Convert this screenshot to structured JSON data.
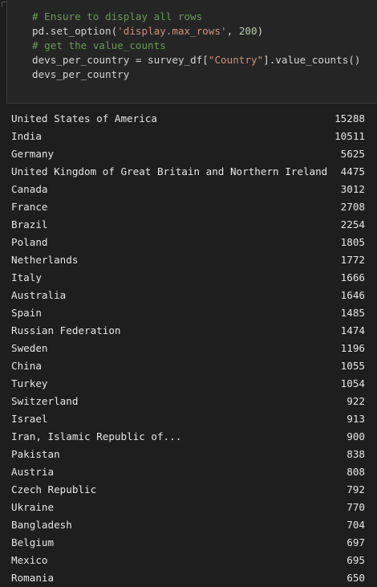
{
  "code_cell": {
    "lines": [
      {
        "kind": "comment",
        "text": "# Ensure to display all rows"
      },
      {
        "kind": "code",
        "tokens": [
          {
            "t": "pd.set_option(",
            "c": "tk-id"
          },
          {
            "t": "'display.max_rows'",
            "c": "tk-str"
          },
          {
            "t": ", ",
            "c": "tk-id"
          },
          {
            "t": "200",
            "c": "tk-num"
          },
          {
            "t": ")",
            "c": "tk-id"
          }
        ]
      },
      {
        "kind": "comment",
        "text": "# get the value_counts"
      },
      {
        "kind": "code",
        "tokens": [
          {
            "t": "devs_per_country = survey_df[",
            "c": "tk-id"
          },
          {
            "t": "\"Country\"",
            "c": "tk-str"
          },
          {
            "t": "].value_counts()",
            "c": "tk-id"
          }
        ]
      },
      {
        "kind": "code",
        "tokens": [
          {
            "t": "devs_per_country",
            "c": "tk-id"
          }
        ]
      }
    ]
  },
  "output": {
    "rows": [
      {
        "name": "United States of America",
        "count": "15288"
      },
      {
        "name": "India",
        "count": "10511"
      },
      {
        "name": "Germany",
        "count": "5625"
      },
      {
        "name": "United Kingdom of Great Britain and Northern Ireland",
        "count": "4475"
      },
      {
        "name": "Canada",
        "count": "3012"
      },
      {
        "name": "France",
        "count": "2708"
      },
      {
        "name": "Brazil",
        "count": "2254"
      },
      {
        "name": "Poland",
        "count": "1805"
      },
      {
        "name": "Netherlands",
        "count": "1772"
      },
      {
        "name": "Italy",
        "count": "1666"
      },
      {
        "name": "Australia",
        "count": "1646"
      },
      {
        "name": "Spain",
        "count": "1485"
      },
      {
        "name": "Russian Federation",
        "count": "1474"
      },
      {
        "name": "Sweden",
        "count": "1196"
      },
      {
        "name": "China",
        "count": "1055"
      },
      {
        "name": "Turkey",
        "count": "1054"
      },
      {
        "name": "Switzerland",
        "count": "922"
      },
      {
        "name": "Israel",
        "count": "913"
      },
      {
        "name": "Iran, Islamic Republic of...",
        "count": "900"
      },
      {
        "name": "Pakistan",
        "count": "838"
      },
      {
        "name": "Austria",
        "count": "808"
      },
      {
        "name": "Czech Republic",
        "count": "792"
      },
      {
        "name": "Ukraine",
        "count": "770"
      },
      {
        "name": "Bangladesh",
        "count": "704"
      },
      {
        "name": "Belgium",
        "count": "697"
      },
      {
        "name": "Mexico",
        "count": "695"
      },
      {
        "name": "Romania",
        "count": "650"
      }
    ]
  }
}
